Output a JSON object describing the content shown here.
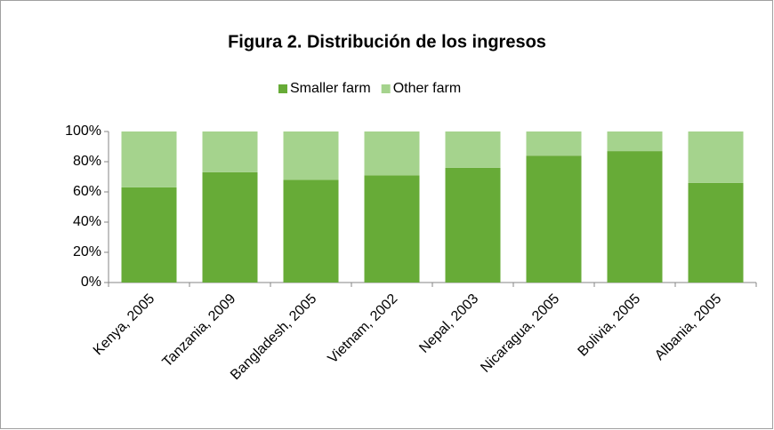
{
  "chart_data": {
    "type": "stacked_bar",
    "title": "Figura 2. Distribución de los ingresos",
    "categories": [
      "Kenya, 2005",
      "Tanzania, 2009",
      "Bangladesh, 2005",
      "Vietnam, 2002",
      "Nepal, 2003",
      "Nicaragua, 2005",
      "Bolivia, 2005",
      "Albania, 2005"
    ],
    "series": [
      {
        "name": "Smaller farm",
        "color": "#67ab37",
        "values": [
          63,
          73,
          68,
          71,
          76,
          84,
          87,
          66
        ]
      },
      {
        "name": "Other farm",
        "color": "#a5d38d",
        "values": [
          37,
          27,
          32,
          29,
          24,
          16,
          13,
          34
        ]
      }
    ],
    "ylim": [
      0,
      100
    ],
    "yticks": [
      {
        "value": 0,
        "label": "0%"
      },
      {
        "value": 20,
        "label": "20%"
      },
      {
        "value": 40,
        "label": "40%"
      },
      {
        "value": 60,
        "label": "60%"
      },
      {
        "value": 80,
        "label": "80%"
      },
      {
        "value": 100,
        "label": "100%"
      }
    ],
    "legend": "top",
    "grid": false
  }
}
